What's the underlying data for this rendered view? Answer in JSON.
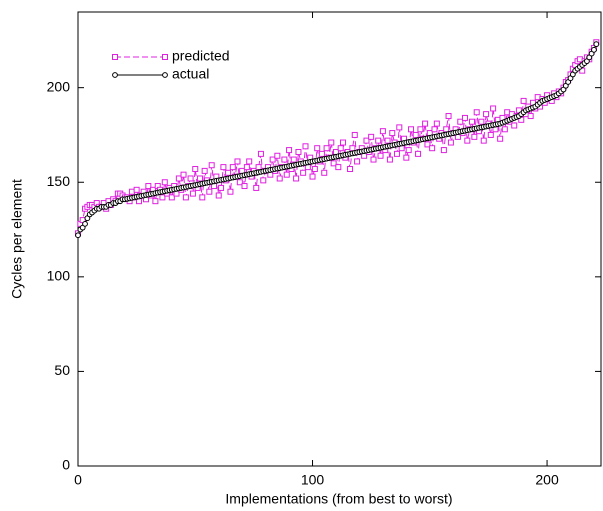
{
  "chart_data": {
    "type": "line",
    "xlabel": "Implementations (from best to worst)",
    "ylabel": "Cycles per element",
    "xlim": [
      0,
      223
    ],
    "ylim": [
      0,
      240
    ],
    "xticks": [
      0,
      100,
      200
    ],
    "yticks": [
      0,
      50,
      100,
      150,
      200
    ],
    "legend": "upper left",
    "x": [
      0,
      1,
      2,
      3,
      4,
      5,
      6,
      7,
      8,
      9,
      10,
      11,
      12,
      13,
      14,
      15,
      16,
      17,
      18,
      19,
      20,
      21,
      22,
      23,
      24,
      25,
      26,
      27,
      28,
      29,
      30,
      31,
      32,
      33,
      34,
      35,
      36,
      37,
      38,
      39,
      40,
      41,
      42,
      43,
      44,
      45,
      46,
      47,
      48,
      49,
      50,
      51,
      52,
      53,
      54,
      55,
      56,
      57,
      58,
      59,
      60,
      61,
      62,
      63,
      64,
      65,
      66,
      67,
      68,
      69,
      70,
      71,
      72,
      73,
      74,
      75,
      76,
      77,
      78,
      79,
      80,
      81,
      82,
      83,
      84,
      85,
      86,
      87,
      88,
      89,
      90,
      91,
      92,
      93,
      94,
      95,
      96,
      97,
      98,
      99,
      100,
      101,
      102,
      103,
      104,
      105,
      106,
      107,
      108,
      109,
      110,
      111,
      112,
      113,
      114,
      115,
      116,
      117,
      118,
      119,
      120,
      121,
      122,
      123,
      124,
      125,
      126,
      127,
      128,
      129,
      130,
      131,
      132,
      133,
      134,
      135,
      136,
      137,
      138,
      139,
      140,
      141,
      142,
      143,
      144,
      145,
      146,
      147,
      148,
      149,
      150,
      151,
      152,
      153,
      154,
      155,
      156,
      157,
      158,
      159,
      160,
      161,
      162,
      163,
      164,
      165,
      166,
      167,
      168,
      169,
      170,
      171,
      172,
      173,
      174,
      175,
      176,
      177,
      178,
      179,
      180,
      181,
      182,
      183,
      184,
      185,
      186,
      187,
      188,
      189,
      190,
      191,
      192,
      193,
      194,
      195,
      196,
      197,
      198,
      199,
      200,
      201,
      202,
      203,
      204,
      205,
      206,
      207,
      208,
      209,
      210,
      211,
      212,
      213,
      214,
      215,
      216,
      217,
      218,
      219,
      220,
      221
    ],
    "series": [
      {
        "name": "predicted",
        "color": "#e020e0",
        "line_style": "dashed",
        "marker": "square",
        "values": [
          123,
          128,
          130,
          136,
          137,
          138,
          138,
          137,
          139,
          137,
          137,
          139,
          136,
          140,
          138,
          141,
          140,
          144,
          144,
          143,
          142,
          142,
          140,
          145,
          142,
          146,
          140,
          143,
          145,
          141,
          148,
          143,
          146,
          140,
          148,
          146,
          142,
          150,
          144,
          147,
          142,
          148,
          144,
          152,
          146,
          154,
          142,
          148,
          152,
          144,
          157,
          147,
          152,
          142,
          156,
          151,
          145,
          159,
          148,
          153,
          143,
          147,
          158,
          151,
          155,
          145,
          158,
          153,
          161,
          150,
          156,
          148,
          158,
          161,
          153,
          156,
          147,
          158,
          165,
          151,
          156,
          158,
          154,
          162,
          156,
          164,
          152,
          158,
          162,
          154,
          167,
          157,
          162,
          152,
          166,
          161,
          155,
          169,
          158,
          163,
          153,
          157,
          168,
          161,
          165,
          155,
          168,
          163,
          171,
          160,
          166,
          158,
          168,
          171,
          163,
          166,
          157,
          168,
          175,
          161,
          166,
          168,
          164,
          172,
          166,
          174,
          162,
          168,
          172,
          164,
          177,
          167,
          172,
          162,
          176,
          171,
          165,
          179,
          168,
          173,
          163,
          167,
          178,
          171,
          175,
          165,
          178,
          173,
          181,
          170,
          176,
          168,
          178,
          181,
          173,
          176,
          167,
          178,
          185,
          171,
          176,
          178,
          174,
          182,
          176,
          184,
          172,
          178,
          182,
          174,
          187,
          177,
          182,
          172,
          186,
          181,
          175,
          189,
          178,
          183,
          173,
          184,
          178,
          187,
          182,
          186,
          180,
          185,
          188,
          183,
          193,
          186,
          190,
          185,
          192,
          189,
          195,
          190,
          194,
          192,
          196,
          194,
          193,
          197,
          195,
          198,
          197,
          200,
          203,
          204,
          207,
          210,
          212,
          214,
          215,
          209,
          214,
          216,
          215,
          219,
          221,
          224
        ]
      },
      {
        "name": "actual",
        "color": "#000000",
        "line_style": "solid",
        "marker": "circle",
        "values": [
          122,
          125,
          126,
          128,
          131,
          133,
          134,
          135,
          136,
          136,
          137,
          137,
          137,
          138,
          138,
          139,
          139,
          140,
          140,
          141,
          141,
          141.25,
          141.5,
          141.75,
          142,
          142.25,
          142.5,
          142.75,
          143,
          143.25,
          143.5,
          143.75,
          144,
          144.25,
          144.5,
          144.75,
          145,
          145.25,
          145.5,
          145.75,
          146,
          146.25,
          146.5,
          146.75,
          147,
          147.25,
          147.5,
          147.75,
          148,
          148.25,
          148.5,
          148.75,
          149,
          149.25,
          149.5,
          149.75,
          150,
          150.25,
          150.5,
          150.75,
          151,
          151.25,
          151.5,
          151.75,
          152,
          152.25,
          152.5,
          152.75,
          153,
          153.25,
          153.5,
          153.75,
          154,
          154.25,
          154.5,
          154.75,
          155,
          155.25,
          155.5,
          155.75,
          156,
          156.25,
          156.5,
          156.75,
          157,
          157.25,
          157.5,
          157.75,
          158,
          158.25,
          158.5,
          158.75,
          159,
          159.25,
          159.5,
          159.75,
          160,
          160.25,
          160.5,
          160.75,
          161,
          161.25,
          161.5,
          161.75,
          162,
          162.25,
          162.5,
          162.75,
          163,
          163.25,
          163.5,
          163.75,
          164,
          164.25,
          164.5,
          164.75,
          165,
          165.25,
          165.5,
          165.75,
          166,
          166.25,
          166.5,
          166.75,
          167,
          167.25,
          167.5,
          167.75,
          168,
          168.25,
          168.5,
          168.75,
          169,
          169.25,
          169.5,
          169.75,
          170,
          170.25,
          170.5,
          170.75,
          171,
          171.25,
          171.5,
          171.75,
          172,
          172.25,
          172.5,
          172.75,
          173,
          173.25,
          173.5,
          173.75,
          174,
          174.25,
          174.5,
          174.75,
          175,
          175.25,
          175.5,
          175.75,
          176,
          176.25,
          176.5,
          176.75,
          177,
          177.25,
          177.5,
          177.75,
          178,
          178.25,
          178.5,
          178.75,
          179,
          179.25,
          179.5,
          179.75,
          180,
          180.25,
          180.5,
          180.75,
          181,
          181.5,
          182,
          182.5,
          183,
          183.5,
          184,
          184.5,
          185,
          186,
          187,
          188,
          188.5,
          189,
          189.5,
          190,
          191,
          192,
          193,
          193.5,
          194,
          194.5,
          195,
          195.5,
          196,
          197,
          198,
          199,
          201,
          203,
          205,
          207,
          209,
          210,
          211,
          212,
          213,
          214,
          216,
          218,
          220,
          223
        ]
      }
    ]
  }
}
